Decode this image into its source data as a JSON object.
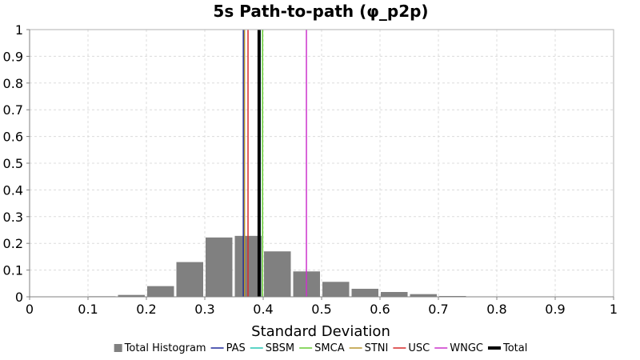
{
  "chart_data": {
    "type": "bar",
    "title": "5s Path-to-path (φ_p2p)",
    "xlabel": "Standard Deviation",
    "ylabel": "",
    "xlim": [
      0,
      1
    ],
    "ylim": [
      0,
      1
    ],
    "xticks": [
      "0",
      "0.1",
      "0.2",
      "0.3",
      "0.4",
      "0.5",
      "0.6",
      "0.7",
      "0.8",
      "0.9",
      "1"
    ],
    "yticks": [
      "0",
      "0.1",
      "0.2",
      "0.3",
      "0.4",
      "0.5",
      "0.6",
      "0.7",
      "0.8",
      "0.9",
      "1"
    ],
    "grid": true,
    "legend_position": "bottom",
    "histogram": {
      "name": "Total Histogram",
      "color": "#808080",
      "bin_width": 0.05,
      "bins": [
        {
          "x0": 0.1,
          "x1": 0.15,
          "value": 0.002
        },
        {
          "x0": 0.15,
          "x1": 0.2,
          "value": 0.007
        },
        {
          "x0": 0.2,
          "x1": 0.25,
          "value": 0.04
        },
        {
          "x0": 0.25,
          "x1": 0.3,
          "value": 0.13
        },
        {
          "x0": 0.3,
          "x1": 0.35,
          "value": 0.222
        },
        {
          "x0": 0.35,
          "x1": 0.4,
          "value": 0.228
        },
        {
          "x0": 0.4,
          "x1": 0.45,
          "value": 0.17
        },
        {
          "x0": 0.45,
          "x1": 0.5,
          "value": 0.095
        },
        {
          "x0": 0.5,
          "x1": 0.55,
          "value": 0.056
        },
        {
          "x0": 0.55,
          "x1": 0.6,
          "value": 0.03
        },
        {
          "x0": 0.6,
          "x1": 0.65,
          "value": 0.018
        },
        {
          "x0": 0.65,
          "x1": 0.7,
          "value": 0.01
        },
        {
          "x0": 0.7,
          "x1": 0.75,
          "value": 0.003
        },
        {
          "x0": 0.75,
          "x1": 0.8,
          "value": 0.001
        }
      ]
    },
    "series": [
      {
        "name": "PAS",
        "type": "vline",
        "x": 0.366,
        "color": "#1f2a9b"
      },
      {
        "name": "SBSM",
        "type": "vline",
        "x": 0.395,
        "color": "#26c6b4"
      },
      {
        "name": "SMCA",
        "type": "vline",
        "x": 0.399,
        "color": "#66cc33"
      },
      {
        "name": "STNI",
        "type": "vline",
        "x": 0.368,
        "color": "#b8962e"
      },
      {
        "name": "USC",
        "type": "vline",
        "x": 0.374,
        "color": "#d62a2a"
      },
      {
        "name": "WNGC",
        "type": "vline",
        "x": 0.474,
        "color": "#cc33cc"
      },
      {
        "name": "Total",
        "type": "vline",
        "x": 0.393,
        "color": "#000000",
        "bold": true
      }
    ]
  }
}
